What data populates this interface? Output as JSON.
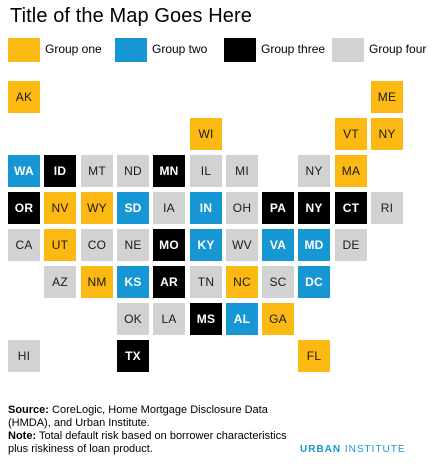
{
  "title": "Title of the Map Goes Here",
  "colors": {
    "group_one": "#fdb913",
    "group_two": "#1696d2",
    "group_three": "#000000",
    "group_four": "#d2d2d2"
  },
  "legend": [
    {
      "group": "g1",
      "label": "Group one"
    },
    {
      "group": "g2",
      "label": "Group two"
    },
    {
      "group": "g3",
      "label": "Group three"
    },
    {
      "group": "g4",
      "label": "Group four"
    }
  ],
  "states": [
    {
      "abbr": "AK",
      "group": "g1",
      "col": 0,
      "row": 0
    },
    {
      "abbr": "ME",
      "group": "g1",
      "col": 10,
      "row": 0
    },
    {
      "abbr": "WI",
      "group": "g1",
      "col": 5,
      "row": 1
    },
    {
      "abbr": "VT",
      "group": "g1",
      "col": 9,
      "row": 1
    },
    {
      "abbr": "NY",
      "group": "g1",
      "col": 10,
      "row": 1
    },
    {
      "abbr": "WA",
      "group": "g2",
      "col": 0,
      "row": 2
    },
    {
      "abbr": "ID",
      "group": "g3",
      "col": 1,
      "row": 2
    },
    {
      "abbr": "MT",
      "group": "g4",
      "col": 2,
      "row": 2
    },
    {
      "abbr": "ND",
      "group": "g4",
      "col": 3,
      "row": 2
    },
    {
      "abbr": "MN",
      "group": "g3",
      "col": 4,
      "row": 2
    },
    {
      "abbr": "IL",
      "group": "g4",
      "col": 5,
      "row": 2
    },
    {
      "abbr": "MI",
      "group": "g4",
      "col": 6,
      "row": 2
    },
    {
      "abbr": "NY",
      "group": "g4",
      "col": 8,
      "row": 2
    },
    {
      "abbr": "MA",
      "group": "g1",
      "col": 9,
      "row": 2
    },
    {
      "abbr": "OR",
      "group": "g3",
      "col": 0,
      "row": 3
    },
    {
      "abbr": "NV",
      "group": "g1",
      "col": 1,
      "row": 3
    },
    {
      "abbr": "WY",
      "group": "g1",
      "col": 2,
      "row": 3
    },
    {
      "abbr": "SD",
      "group": "g2",
      "col": 3,
      "row": 3
    },
    {
      "abbr": "IA",
      "group": "g4",
      "col": 4,
      "row": 3
    },
    {
      "abbr": "IN",
      "group": "g2",
      "col": 5,
      "row": 3
    },
    {
      "abbr": "OH",
      "group": "g4",
      "col": 6,
      "row": 3
    },
    {
      "abbr": "PA",
      "group": "g3",
      "col": 7,
      "row": 3
    },
    {
      "abbr": "NY",
      "group": "g3",
      "col": 8,
      "row": 3
    },
    {
      "abbr": "CT",
      "group": "g3",
      "col": 9,
      "row": 3
    },
    {
      "abbr": "RI",
      "group": "g4",
      "col": 10,
      "row": 3
    },
    {
      "abbr": "CA",
      "group": "g4",
      "col": 0,
      "row": 4
    },
    {
      "abbr": "UT",
      "group": "g1",
      "col": 1,
      "row": 4
    },
    {
      "abbr": "CO",
      "group": "g4",
      "col": 2,
      "row": 4
    },
    {
      "abbr": "NE",
      "group": "g4",
      "col": 3,
      "row": 4
    },
    {
      "abbr": "MO",
      "group": "g3",
      "col": 4,
      "row": 4
    },
    {
      "abbr": "KY",
      "group": "g2",
      "col": 5,
      "row": 4
    },
    {
      "abbr": "WV",
      "group": "g4",
      "col": 6,
      "row": 4
    },
    {
      "abbr": "VA",
      "group": "g2",
      "col": 7,
      "row": 4
    },
    {
      "abbr": "MD",
      "group": "g2",
      "col": 8,
      "row": 4
    },
    {
      "abbr": "DE",
      "group": "g4",
      "col": 9,
      "row": 4
    },
    {
      "abbr": "AZ",
      "group": "g4",
      "col": 1,
      "row": 5
    },
    {
      "abbr": "NM",
      "group": "g1",
      "col": 2,
      "row": 5
    },
    {
      "abbr": "KS",
      "group": "g2",
      "col": 3,
      "row": 5
    },
    {
      "abbr": "AR",
      "group": "g3",
      "col": 4,
      "row": 5
    },
    {
      "abbr": "TN",
      "group": "g4",
      "col": 5,
      "row": 5
    },
    {
      "abbr": "NC",
      "group": "g1",
      "col": 6,
      "row": 5
    },
    {
      "abbr": "SC",
      "group": "g4",
      "col": 7,
      "row": 5
    },
    {
      "abbr": "DC",
      "group": "g2",
      "col": 8,
      "row": 5
    },
    {
      "abbr": "OK",
      "group": "g4",
      "col": 3,
      "row": 6
    },
    {
      "abbr": "LA",
      "group": "g4",
      "col": 4,
      "row": 6
    },
    {
      "abbr": "MS",
      "group": "g3",
      "col": 5,
      "row": 6
    },
    {
      "abbr": "AL",
      "group": "g2",
      "col": 6,
      "row": 6
    },
    {
      "abbr": "GA",
      "group": "g1",
      "col": 7,
      "row": 6
    },
    {
      "abbr": "HI",
      "group": "g4",
      "col": 0,
      "row": 7
    },
    {
      "abbr": "TX",
      "group": "g3",
      "col": 3,
      "row": 7
    },
    {
      "abbr": "FL",
      "group": "g1",
      "col": 8,
      "row": 7
    }
  ],
  "footer": {
    "source_label": "Source:",
    "source_text": "CoreLogic, Home Mortgage Disclosure Data (HMDA), and Urban Institute.",
    "note_label": "Note:",
    "note_text": "Total default risk based on borrower characteristics plus riskiness of loan product."
  },
  "brand": {
    "part1": "URBAN",
    "part2": "INSTITUTE"
  }
}
